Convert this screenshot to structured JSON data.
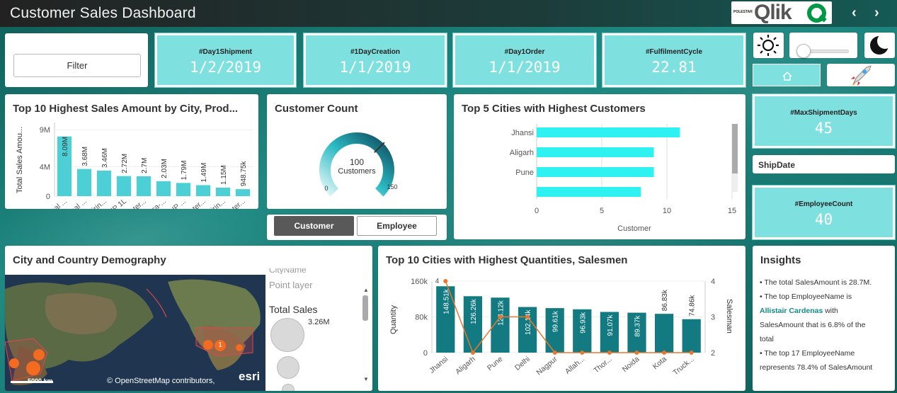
{
  "app": {
    "title": "Customer Sales Dashboard",
    "logo_small": "POLESTAR",
    "logo_word": "Qlik"
  },
  "nav": {
    "prev": "‹",
    "next": "›"
  },
  "filter": {
    "label": "Filter"
  },
  "kpis": [
    {
      "label": "#Day1Shipment",
      "value": "1/2/2019"
    },
    {
      "label": "#1DayCreation",
      "value": "1/1/2019"
    },
    {
      "label": "#Day1Order",
      "value": "1/1/2019"
    },
    {
      "label": "#FulfilmentCycle",
      "value": "22.81"
    }
  ],
  "side_kpis": {
    "max_shipment": {
      "label": "#MaxShipmentDays",
      "value": "45"
    },
    "ship_date": "ShipDate",
    "employee_count": {
      "label": "#EmployeeCount",
      "value": "40"
    }
  },
  "theme": {
    "sun_icon": "sun-icon",
    "moon_icon": "moon-icon",
    "home_icon": "home-icon",
    "rocket_icon": "rocket-icon",
    "slider_value": 0
  },
  "customer_count": {
    "title": "Customer Count",
    "value": "100",
    "unit": "Customers",
    "min": "0",
    "max": "150",
    "gauge_fraction": 0.667
  },
  "toggle": {
    "customer": "Customer",
    "employee": "Employee",
    "selected": "Customer"
  },
  "map": {
    "title": "City and Country Demography",
    "legend_layer_name": "CityName",
    "legend_layer": "Point layer",
    "legend_total": "Total Sales",
    "legend_value": "3.26M",
    "scale": "5000 km",
    "credit": "© OpenStreetMap contributors,",
    "esri": "esri",
    "cluster_label": "1"
  },
  "insights": {
    "title": "Insights",
    "line1": "• The total SalesAmount is 28.7M.",
    "line2": "• The top EmployeeName is",
    "top_name": "Allistair Cardenas",
    "line3": " with",
    "line4": "SalesAmount that is 6.8% of the",
    "line5": "total",
    "line6": "• The top 17 EmployeeName",
    "line7": "represents 78.4% of SalesAmount"
  },
  "chart_data": [
    {
      "type": "bar",
      "title": "Top 10 Highest Sales Amount by City, Prod...",
      "ylabel": "Total Sales Amou...",
      "ylim": [
        0,
        9500000
      ],
      "yticks": [
        "9M",
        "4M",
        "0"
      ],
      "categories": [
        "Real ...",
        "Real ...",
        "Mirin...",
        "7UP 1L",
        "Water...",
        "Coca-...",
        "7UP ...",
        "Water...",
        "Mirin...",
        "Water..."
      ],
      "values": [
        8090000,
        3680000,
        3460000,
        2720000,
        2700000,
        2030000,
        1790000,
        1490000,
        1150000,
        948750
      ],
      "labels": [
        "8.09M",
        "3.68M",
        "3.46M",
        "2.72M",
        "2.7M",
        "2.03M",
        "1.79M",
        "1.49M",
        "1.15M",
        "948.75k"
      ]
    },
    {
      "type": "bar",
      "orientation": "horizontal",
      "title": "Top 5 Cities with Highest Customers",
      "xlabel": "Customer",
      "xlim": [
        0,
        15
      ],
      "xticks": [
        "0",
        "5",
        "10",
        "15"
      ],
      "categories": [
        "Jhansi",
        "Aligarh",
        "Pune",
        ""
      ],
      "values": [
        11,
        9,
        9,
        8
      ]
    },
    {
      "type": "bar",
      "title": "Top 10 Cities with Highest Quantities, Salesmen",
      "ylabel": "Quantity",
      "y2label": "Salesman",
      "ylim": [
        0,
        160000
      ],
      "yticks": [
        "160k",
        "80k",
        "0"
      ],
      "y2ticks": [
        "4",
        "3",
        "2"
      ],
      "y2lim": [
        2,
        4
      ],
      "categories": [
        "Jhansi",
        "Aligarh",
        "Pune",
        "Delhi",
        "Nagpur",
        "Allah...",
        "Thor...",
        "Noida",
        "Kota",
        "Truck..."
      ],
      "values": [
        148510,
        126260,
        123120,
        102140,
        99610,
        96930,
        91070,
        89370,
        86830,
        74860
      ],
      "labels": [
        "148.51k",
        "126.26k",
        "123.12k",
        "102.14k",
        "99.61k",
        "96.93k",
        "91.07k",
        "89.37k",
        "86.83k",
        "74.86k"
      ],
      "line_series": {
        "name": "Salesman",
        "values": [
          4,
          2,
          3,
          3,
          2,
          2,
          2,
          2,
          2,
          2
        ],
        "first_label": "4"
      }
    }
  ]
}
